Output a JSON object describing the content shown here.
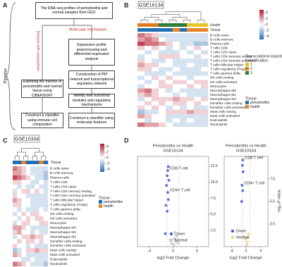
{
  "panel_a": {
    "label": "A",
    "pipeline": "Pipeline",
    "branch_left": "Immune cell composition",
    "branch_right": "Molecular mechanism",
    "boxes": [
      "The RNA-seq profiles of periodontitis and normal samples from GEO",
      "Expression profile preprocessing and differential expression analysis",
      "Construction of PPI network and transcriptional regulatory network",
      "Identify new functional modules and regulatory mechanisms",
      "Construct a classifier using molecular features",
      "Exploring the fraction of periodontitis and normal tissue using CIBERSORT",
      "Construct a classifier using immune cell composition"
    ]
  },
  "panel_b": {
    "label": "B",
    "dataset": "GSE16134",
    "cluster_label": "cluster",
    "tissue_label": "Tissue",
    "rows": [
      "B cells naive",
      "B cells memory",
      "Plasma cells",
      "T cells CD8",
      "T cells CD4 naive",
      "T cells CD4 memory resting",
      "T cells CD4 memory activated",
      "T cells follicular helper",
      "T cells regulatory (Tregs)",
      "T cells gamma delta",
      "NK cells resting",
      "NK cells activated",
      "Monocytes",
      "Macrophages M0",
      "Macrophages M1",
      "Macrophages M2",
      "Dendritic cells resting",
      "Dendritic cells activated",
      "Mast cells resting",
      "Mast cells activated",
      "Eosinophils",
      "Neutrophils"
    ],
    "clim": [
      -5,
      5
    ],
    "colorbar_ticks": [
      4,
      2,
      0,
      -2,
      -4
    ],
    "cluster_legend": {
      "title_lines": [
        "Transcriptome-based",
        "Classification"
      ],
      "items": [
        {
          "name": "1",
          "color": "#e8c32e"
        },
        {
          "name": "2",
          "color": "#e07b1a"
        },
        {
          "name": "3",
          "color": "#2e7d32"
        }
      ]
    },
    "tissue_legend": {
      "title": "Tissue",
      "items": [
        {
          "name": "periodontitis",
          "color": "#1f6fb2"
        },
        {
          "name": "health",
          "color": "#e8832a"
        }
      ]
    },
    "cluster": [
      2,
      2,
      2,
      3,
      3,
      3,
      3,
      1,
      1,
      1
    ],
    "tissue": [
      0,
      0,
      0,
      0,
      0,
      1,
      0,
      1,
      1,
      1
    ],
    "values": [
      [
        3,
        2,
        1,
        -1,
        -1,
        -1,
        -1,
        -1,
        -1,
        -1
      ],
      [
        2,
        3,
        2,
        0,
        -1,
        -1,
        -1,
        -1,
        -1,
        -1
      ],
      [
        4,
        3,
        3,
        2,
        1,
        0,
        -1,
        -1,
        -2,
        -2
      ],
      [
        1,
        0,
        1,
        0,
        -1,
        0,
        -1,
        0,
        1,
        0
      ],
      [
        0,
        -1,
        0,
        -1,
        -1,
        -1,
        0,
        -1,
        0,
        -1
      ],
      [
        -1,
        0,
        0,
        1,
        1,
        1,
        0,
        0,
        -1,
        0
      ],
      [
        1,
        0,
        -1,
        -1,
        0,
        -1,
        -1,
        -1,
        -1,
        -1
      ],
      [
        2,
        1,
        1,
        0,
        0,
        -1,
        -1,
        0,
        -1,
        -1
      ],
      [
        1,
        1,
        0,
        -1,
        -1,
        0,
        -1,
        -1,
        -1,
        0
      ],
      [
        0,
        -1,
        -1,
        -1,
        0,
        -1,
        -1,
        -1,
        -1,
        -1
      ],
      [
        -1,
        0,
        1,
        0,
        1,
        0,
        0,
        -1,
        0,
        0
      ],
      [
        0,
        -1,
        0,
        1,
        0,
        1,
        1,
        0,
        1,
        1
      ],
      [
        -1,
        0,
        0,
        1,
        1,
        0,
        0,
        1,
        0,
        1
      ],
      [
        2,
        3,
        1,
        0,
        -1,
        0,
        -1,
        -1,
        -1,
        -1
      ],
      [
        1,
        2,
        1,
        0,
        0,
        -1,
        0,
        -1,
        -1,
        -1
      ],
      [
        -1,
        0,
        1,
        1,
        1,
        2,
        1,
        1,
        0,
        1
      ],
      [
        0,
        1,
        0,
        1,
        0,
        1,
        1,
        0,
        1,
        0
      ],
      [
        1,
        0,
        1,
        0,
        -1,
        0,
        -1,
        0,
        -1,
        -1
      ],
      [
        -2,
        -1,
        -1,
        0,
        1,
        1,
        1,
        2,
        1,
        1
      ],
      [
        2,
        1,
        0,
        0,
        -1,
        -1,
        -1,
        -1,
        -1,
        -1
      ],
      [
        0,
        -1,
        0,
        0,
        -1,
        0,
        -1,
        0,
        -1,
        -1
      ],
      [
        3,
        2,
        2,
        1,
        0,
        -1,
        -1,
        -1,
        -1,
        -1
      ]
    ]
  },
  "panel_c": {
    "label": "C",
    "dataset": "GSE10334",
    "tissue_label": "Tissue",
    "rows": [
      "B cells naive",
      "B cells memory",
      "Plasma cells",
      "T cells CD8",
      "T cells CD4 naive",
      "T cells CD4 memory resting",
      "T cells CD4 memory activated",
      "T cells follicular helper",
      "T cells regulatory (Tregs)",
      "T cells gamma delta",
      "NK cells resting",
      "NK cells activated",
      "Monocytes",
      "Macrophages M0",
      "Macrophages M1",
      "Macrophages M2",
      "Dendritic cells resting",
      "Dendritic cells activated",
      "Mast cells resting",
      "Mast cells activated",
      "Eosinophils",
      "Neutrophils"
    ],
    "clim": [
      -5,
      5
    ],
    "colorbar_ticks": [
      4,
      2,
      0,
      -2,
      -4
    ],
    "tissue_legend": {
      "title": "Tissue",
      "items": [
        {
          "name": "periodontitis",
          "color": "#1f6fb2"
        },
        {
          "name": "health",
          "color": "#e8832a"
        }
      ]
    },
    "tissue": [
      0,
      0,
      1,
      0,
      0,
      0,
      1,
      0
    ],
    "values": [
      [
        3,
        2,
        1,
        0,
        -1,
        -1,
        -1,
        -1
      ],
      [
        2,
        2,
        1,
        0,
        -1,
        -1,
        -1,
        -2
      ],
      [
        4,
        3,
        2,
        1,
        0,
        -1,
        -1,
        -2
      ],
      [
        1,
        1,
        0,
        0,
        -1,
        -1,
        0,
        -1
      ],
      [
        0,
        -1,
        0,
        -1,
        -1,
        0,
        -1,
        -1
      ],
      [
        -1,
        0,
        1,
        1,
        0,
        1,
        0,
        -1
      ],
      [
        1,
        0,
        0,
        -1,
        -1,
        -1,
        -1,
        -1
      ],
      [
        2,
        1,
        0,
        0,
        -1,
        -1,
        -1,
        -1
      ],
      [
        1,
        1,
        0,
        0,
        -1,
        -1,
        -1,
        -1
      ],
      [
        0,
        -1,
        0,
        -1,
        -1,
        -1,
        0,
        -1
      ],
      [
        -1,
        0,
        1,
        0,
        1,
        1,
        0,
        0
      ],
      [
        0,
        -1,
        0,
        1,
        0,
        1,
        1,
        0
      ],
      [
        -1,
        0,
        1,
        1,
        0,
        0,
        1,
        1
      ],
      [
        2,
        2,
        1,
        0,
        -1,
        -1,
        -1,
        -1
      ],
      [
        1,
        2,
        0,
        0,
        -1,
        0,
        -1,
        -1
      ],
      [
        -1,
        0,
        1,
        1,
        2,
        1,
        1,
        0
      ],
      [
        0,
        1,
        0,
        1,
        1,
        0,
        1,
        0
      ],
      [
        1,
        0,
        0,
        -1,
        0,
        -1,
        -1,
        -1
      ],
      [
        -2,
        -1,
        0,
        1,
        1,
        2,
        1,
        1
      ],
      [
        2,
        1,
        0,
        -1,
        -1,
        -1,
        -1,
        -1
      ],
      [
        0,
        0,
        -1,
        -1,
        0,
        -1,
        -1,
        -1
      ],
      [
        3,
        2,
        1,
        0,
        -1,
        -1,
        -1,
        -2
      ]
    ]
  },
  "panel_d": {
    "label": "D",
    "ylabel": "−log₁₀P-Value",
    "plots": [
      {
        "type": "scatter",
        "title": "Periodontitis vs Health",
        "subtitle": "GSE16134",
        "xlabel": "log2 Fold Change",
        "xlim": [
          -6,
          6
        ],
        "xticks": [
          -4,
          0,
          4
        ],
        "ylim": [
          0,
          14
        ],
        "yticks": [
          2.5,
          {
            "value": 5,
            "label": "5.0"
          },
          7.5,
          {
            "value": 10,
            "label": "10.0"
          },
          12.5
        ],
        "vlines": [
          -1,
          1
        ],
        "series": [
          {
            "name": "Down",
            "color": "#4a5fd8",
            "x": [
              -0.8,
              -0.9,
              -1.0,
              -0.7,
              -1.1,
              -0.9,
              -0.8,
              -1.2,
              -1.0,
              -1.3
            ],
            "values": [
              12.4,
              11.8,
              11.0,
              10.3,
              9.5,
              8.4,
              7.3,
              6.4,
              5.5,
              2.0
            ],
            "labels": [
              null,
              "CD8 T cell",
              null,
              null,
              null,
              "CD4+ T cell",
              null,
              null,
              null,
              null
            ]
          },
          {
            "name": "Normal",
            "color": "#c8c8c8",
            "x": [
              0.2,
              0.4,
              -0.3,
              0.6,
              0.1,
              -0.5,
              0.3,
              0.8
            ],
            "values": [
              1.2,
              0.8,
              0.5,
              1.6,
              0.3,
              1.0,
              2.2,
              0.6
            ]
          }
        ]
      },
      {
        "type": "scatter",
        "title": "Periodontitis vs Health",
        "subtitle": "GSE10334",
        "xlabel": "log2 Fold Change",
        "xlim": [
          -6,
          6
        ],
        "xticks": [
          -4,
          0,
          4
        ],
        "ylim": [
          0,
          10
        ],
        "yticks": [
          2.5,
          {
            "value": 5,
            "label": "5.0"
          },
          7.5
        ],
        "vlines": [
          -1,
          1
        ],
        "series": [
          {
            "name": "Down",
            "color": "#4a5fd8",
            "x": [
              -0.9,
              -1.0,
              -0.8,
              -1.1,
              -0.9,
              -1.2
            ],
            "values": [
              9.6,
              9.0,
              8.3,
              6.8,
              6.2,
              5.0
            ],
            "labels": [
              "CD8 T cell",
              null,
              null,
              "CD4+ T cell",
              null,
              null
            ]
          },
          {
            "name": "Normal",
            "color": "#e6d69a",
            "x": [
              0.3,
              0.5,
              -0.2,
              0.7,
              0.1,
              -0.6
            ],
            "values": [
              0.5,
              1.0,
              0.8,
              1.4,
              0.2,
              1.1
            ]
          }
        ]
      }
    ]
  }
}
